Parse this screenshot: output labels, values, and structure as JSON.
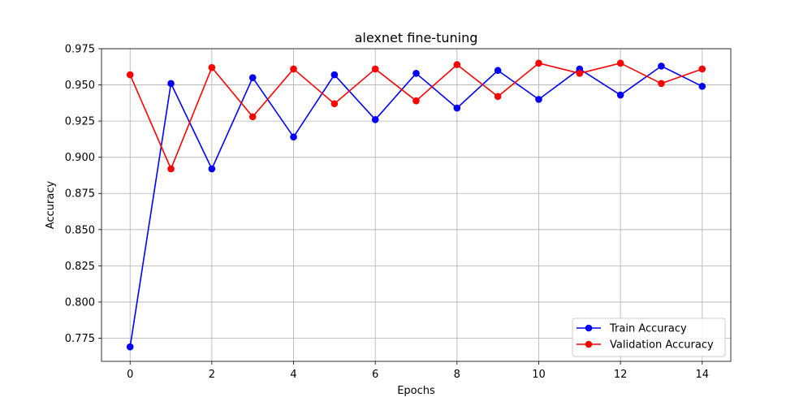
{
  "chart_data": {
    "type": "line",
    "title": "alexnet fine-tuning",
    "xlabel": "Epochs",
    "ylabel": "Accuracy",
    "xlim": [
      -0.7,
      14.7
    ],
    "ylim": [
      0.759,
      0.975
    ],
    "x": [
      0,
      1,
      2,
      3,
      4,
      5,
      6,
      7,
      8,
      9,
      10,
      11,
      12,
      13,
      14
    ],
    "xticks": [
      0,
      2,
      4,
      6,
      8,
      10,
      12,
      14
    ],
    "xtick_labels": [
      "0",
      "2",
      "4",
      "6",
      "8",
      "10",
      "12",
      "14"
    ],
    "yticks": [
      0.775,
      0.8,
      0.825,
      0.85,
      0.875,
      0.9,
      0.925,
      0.95,
      0.975
    ],
    "ytick_labels": [
      "0.775",
      "0.800",
      "0.825",
      "0.850",
      "0.875",
      "0.900",
      "0.925",
      "0.950",
      "0.975"
    ],
    "grid": true,
    "legend_position": "bottom-right",
    "series": [
      {
        "name": "Train Accuracy",
        "color": "#0000ff",
        "marker": "circle",
        "values": [
          0.769,
          0.951,
          0.892,
          0.955,
          0.914,
          0.957,
          0.926,
          0.958,
          0.934,
          0.96,
          0.94,
          0.961,
          0.943,
          0.963,
          0.949
        ]
      },
      {
        "name": "Validation Accuracy",
        "color": "#ff0000",
        "marker": "circle",
        "values": [
          0.957,
          0.892,
          0.962,
          0.928,
          0.961,
          0.937,
          0.961,
          0.939,
          0.964,
          0.942,
          0.965,
          0.958,
          0.965,
          0.951,
          0.961
        ]
      }
    ]
  }
}
